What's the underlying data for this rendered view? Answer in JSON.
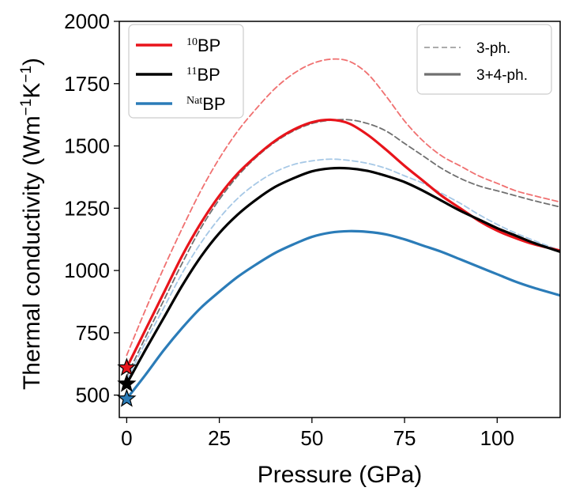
{
  "chart_data": {
    "type": "line",
    "xlabel": "Pressure (GPa)",
    "ylabel_main": "Thermal conductivity (Wm",
    "ylabel_exp1": "−1",
    "ylabel_mid": "K",
    "ylabel_exp2": "−1",
    "ylabel_end": ")",
    "xlim": [
      -2,
      117
    ],
    "ylim": [
      410,
      2000
    ],
    "xticks": [
      0,
      25,
      50,
      75,
      100
    ],
    "yticks": [
      500,
      750,
      1000,
      1250,
      1500,
      1750,
      2000
    ],
    "series": [
      {
        "name": "10BP",
        "sup": "10",
        "base": "BP",
        "color": "#e8141b",
        "model": "3+4-ph.",
        "x": [
          0,
          5,
          10,
          15,
          20,
          25,
          30,
          35,
          40,
          45,
          50,
          55,
          60,
          65,
          70,
          75,
          80,
          85,
          90,
          95,
          100,
          105,
          110,
          117
        ],
        "y": [
          610,
          760,
          910,
          1060,
          1190,
          1300,
          1390,
          1460,
          1520,
          1565,
          1595,
          1605,
          1590,
          1545,
          1485,
          1420,
          1360,
          1300,
          1250,
          1200,
          1160,
          1130,
          1105,
          1080
        ]
      },
      {
        "name": "11BP",
        "sup": "11",
        "base": "BP",
        "color": "#000000",
        "model": "3+4-ph.",
        "x": [
          0,
          5,
          10,
          15,
          20,
          25,
          30,
          35,
          40,
          45,
          50,
          55,
          60,
          65,
          70,
          75,
          80,
          85,
          90,
          95,
          100,
          105,
          110,
          117
        ],
        "y": [
          545,
          680,
          810,
          940,
          1055,
          1150,
          1225,
          1285,
          1335,
          1370,
          1398,
          1410,
          1410,
          1400,
          1380,
          1355,
          1320,
          1280,
          1240,
          1205,
          1170,
          1140,
          1110,
          1075
        ]
      },
      {
        "name": "NatBP",
        "sup": "Nat",
        "base": "BP",
        "color": "#2b7cb8",
        "model": "3+4-ph.",
        "x": [
          0,
          5,
          10,
          15,
          20,
          25,
          30,
          35,
          40,
          45,
          50,
          55,
          60,
          65,
          70,
          75,
          80,
          85,
          90,
          95,
          100,
          105,
          110,
          117
        ],
        "y": [
          485,
          580,
          680,
          770,
          850,
          915,
          975,
          1025,
          1070,
          1105,
          1135,
          1152,
          1158,
          1155,
          1145,
          1125,
          1100,
          1075,
          1045,
          1015,
          985,
          955,
          930,
          900
        ]
      },
      {
        "name": "10BP 3-ph.",
        "color": "#f07070",
        "model": "3-ph.",
        "x": [
          0,
          5,
          10,
          15,
          20,
          25,
          30,
          35,
          40,
          45,
          50,
          55,
          60,
          65,
          70,
          75,
          80,
          85,
          90,
          95,
          100,
          105,
          110,
          117
        ],
        "y": [
          660,
          840,
          1010,
          1170,
          1320,
          1450,
          1560,
          1650,
          1730,
          1790,
          1830,
          1848,
          1840,
          1790,
          1700,
          1600,
          1520,
          1460,
          1420,
          1380,
          1350,
          1320,
          1300,
          1275
        ]
      },
      {
        "name": "11BP 3-ph.",
        "color": "#707070",
        "model": "3-ph.",
        "x": [
          0,
          5,
          10,
          15,
          20,
          25,
          30,
          35,
          40,
          45,
          50,
          55,
          60,
          65,
          70,
          75,
          80,
          85,
          90,
          95,
          100,
          105,
          110,
          117
        ],
        "y": [
          575,
          730,
          880,
          1030,
          1170,
          1285,
          1380,
          1455,
          1515,
          1560,
          1590,
          1603,
          1605,
          1590,
          1560,
          1510,
          1460,
          1410,
          1370,
          1340,
          1320,
          1300,
          1280,
          1255
        ]
      },
      {
        "name": "NatBP 3-ph.",
        "color": "#a6c8e6",
        "model": "3-ph.",
        "x": [
          0,
          5,
          10,
          15,
          20,
          25,
          30,
          35,
          40,
          45,
          50,
          55,
          60,
          65,
          70,
          75,
          80,
          85,
          90,
          95,
          100,
          105,
          110,
          117
        ],
        "y": [
          560,
          710,
          850,
          990,
          1110,
          1210,
          1290,
          1350,
          1395,
          1425,
          1440,
          1447,
          1442,
          1430,
          1410,
          1380,
          1350,
          1310,
          1270,
          1225,
          1185,
          1150,
          1120,
          1080
        ]
      }
    ],
    "markers": [
      {
        "name": "10BP ambient",
        "x": 0,
        "y": 610,
        "color": "#e8141b"
      },
      {
        "name": "11BP ambient",
        "x": 0,
        "y": 545,
        "color": "#000000"
      },
      {
        "name": "NatBP ambient",
        "x": 0,
        "y": 485,
        "color": "#2b7cb8"
      }
    ],
    "legend_isotopes": {
      "position": "top-left",
      "entries": [
        {
          "sup": "10",
          "base": "BP",
          "color": "#e8141b"
        },
        {
          "sup": "11",
          "base": "BP",
          "color": "#000000"
        },
        {
          "sup": "Nat",
          "base": "BP",
          "color": "#2b7cb8"
        }
      ]
    },
    "legend_models": {
      "position": "top-right",
      "entries": [
        {
          "label": "3-ph.",
          "style": "dashed",
          "color": "#a0a0a0"
        },
        {
          "label": "3+4-ph.",
          "style": "solid",
          "color": "#707070"
        }
      ]
    }
  }
}
